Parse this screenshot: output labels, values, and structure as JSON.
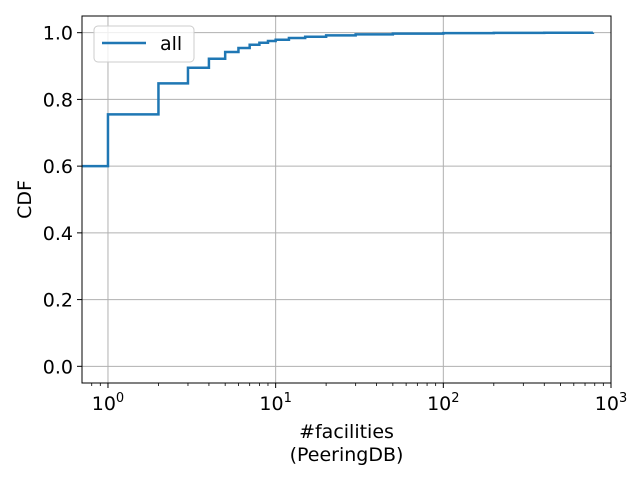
{
  "chart_data": {
    "type": "line",
    "title": "",
    "xlabel": [
      "#facilities",
      "(PeeringDB)"
    ],
    "ylabel": "CDF",
    "xscale": "log",
    "xlim": [
      0.7,
      1000
    ],
    "ylim": [
      -0.05,
      1.05
    ],
    "x_ticks": [
      {
        "value": 1,
        "base": "10",
        "exp": "0"
      },
      {
        "value": 10,
        "base": "10",
        "exp": "1"
      },
      {
        "value": 100,
        "base": "10",
        "exp": "2"
      },
      {
        "value": 1000,
        "base": "10",
        "exp": "3"
      }
    ],
    "y_ticks": [
      {
        "value": 0.0,
        "label": "0.0"
      },
      {
        "value": 0.2,
        "label": "0.2"
      },
      {
        "value": 0.4,
        "label": "0.4"
      },
      {
        "value": 0.6,
        "label": "0.6"
      },
      {
        "value": 0.8,
        "label": "0.8"
      },
      {
        "value": 1.0,
        "label": "1.0"
      }
    ],
    "grid": true,
    "legend": {
      "placement": "upper-left"
    },
    "series": [
      {
        "name": "all",
        "color": "#1f77b4",
        "step": true,
        "x": [
          0.7,
          1,
          2,
          3,
          4,
          5,
          6,
          7,
          8,
          9,
          10,
          12,
          15,
          20,
          30,
          50,
          100,
          200,
          400,
          780
        ],
        "y": [
          0.6,
          0.755,
          0.848,
          0.895,
          0.922,
          0.942,
          0.954,
          0.964,
          0.97,
          0.975,
          0.979,
          0.984,
          0.988,
          0.992,
          0.995,
          0.997,
          0.9985,
          0.9993,
          0.9998,
          1.0
        ]
      }
    ]
  }
}
